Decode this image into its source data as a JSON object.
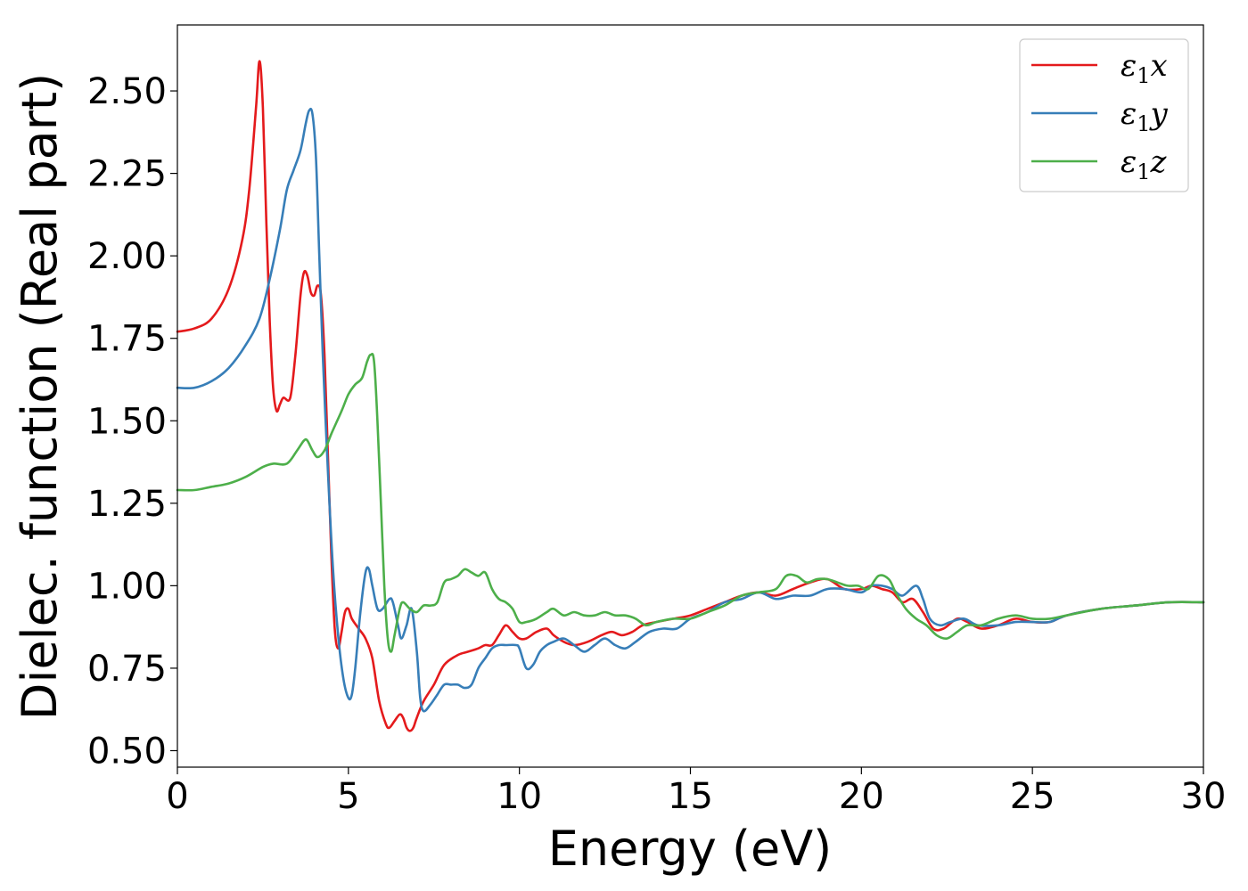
{
  "chart_data": {
    "type": "line",
    "title": "",
    "xlabel": "Energy (eV)",
    "ylabel": "Dielec. function (Real part)",
    "xlim": [
      0,
      30
    ],
    "ylim": [
      0.45,
      2.7
    ],
    "xticks": [
      0,
      5,
      10,
      15,
      20,
      25,
      30
    ],
    "yticks": [
      0.5,
      0.75,
      1.0,
      1.25,
      1.5,
      1.75,
      2.0,
      2.25,
      2.5
    ],
    "ytick_labels": [
      "0.50",
      "0.75",
      "1.00",
      "1.25",
      "1.50",
      "1.75",
      "2.00",
      "2.25",
      "2.50"
    ],
    "grid": false,
    "legend_position": "top-right",
    "series": [
      {
        "name": "ε1x",
        "label_main": "ε",
        "label_sub": "1",
        "label_suffix": "x",
        "color": "#e41a1c",
        "points": [
          [
            0,
            1.77
          ],
          [
            0.5,
            1.78
          ],
          [
            1.0,
            1.81
          ],
          [
            1.5,
            1.9
          ],
          [
            1.9,
            2.05
          ],
          [
            2.1,
            2.2
          ],
          [
            2.3,
            2.45
          ],
          [
            2.4,
            2.59
          ],
          [
            2.5,
            2.45
          ],
          [
            2.6,
            2.1
          ],
          [
            2.7,
            1.8
          ],
          [
            2.8,
            1.6
          ],
          [
            2.9,
            1.53
          ],
          [
            3.0,
            1.55
          ],
          [
            3.1,
            1.57
          ],
          [
            3.3,
            1.57
          ],
          [
            3.45,
            1.7
          ],
          [
            3.6,
            1.88
          ],
          [
            3.7,
            1.95
          ],
          [
            3.8,
            1.94
          ],
          [
            3.9,
            1.89
          ],
          [
            4.0,
            1.88
          ],
          [
            4.1,
            1.91
          ],
          [
            4.2,
            1.88
          ],
          [
            4.3,
            1.7
          ],
          [
            4.4,
            1.4
          ],
          [
            4.5,
            1.1
          ],
          [
            4.6,
            0.87
          ],
          [
            4.7,
            0.81
          ],
          [
            4.8,
            0.86
          ],
          [
            4.9,
            0.92
          ],
          [
            5.0,
            0.93
          ],
          [
            5.1,
            0.9
          ],
          [
            5.3,
            0.87
          ],
          [
            5.5,
            0.84
          ],
          [
            5.7,
            0.78
          ],
          [
            5.9,
            0.65
          ],
          [
            6.1,
            0.58
          ],
          [
            6.2,
            0.57
          ],
          [
            6.35,
            0.59
          ],
          [
            6.5,
            0.61
          ],
          [
            6.6,
            0.6
          ],
          [
            6.7,
            0.57
          ],
          [
            6.8,
            0.56
          ],
          [
            6.9,
            0.57
          ],
          [
            7.0,
            0.6
          ],
          [
            7.2,
            0.65
          ],
          [
            7.5,
            0.7
          ],
          [
            7.8,
            0.76
          ],
          [
            8.2,
            0.79
          ],
          [
            8.5,
            0.8
          ],
          [
            8.8,
            0.81
          ],
          [
            9.0,
            0.82
          ],
          [
            9.2,
            0.82
          ],
          [
            9.4,
            0.85
          ],
          [
            9.6,
            0.88
          ],
          [
            9.8,
            0.86
          ],
          [
            10.0,
            0.84
          ],
          [
            10.2,
            0.84
          ],
          [
            10.5,
            0.86
          ],
          [
            10.8,
            0.87
          ],
          [
            11.0,
            0.85
          ],
          [
            11.3,
            0.83
          ],
          [
            11.6,
            0.82
          ],
          [
            12.0,
            0.83
          ],
          [
            12.4,
            0.85
          ],
          [
            12.7,
            0.86
          ],
          [
            13.0,
            0.85
          ],
          [
            13.3,
            0.86
          ],
          [
            13.6,
            0.88
          ],
          [
            14.0,
            0.89
          ],
          [
            14.5,
            0.9
          ],
          [
            15.0,
            0.91
          ],
          [
            15.5,
            0.93
          ],
          [
            16.0,
            0.95
          ],
          [
            16.5,
            0.97
          ],
          [
            17.0,
            0.98
          ],
          [
            17.5,
            0.97
          ],
          [
            18.0,
            0.99
          ],
          [
            18.5,
            1.01
          ],
          [
            19.0,
            1.02
          ],
          [
            19.5,
            0.99
          ],
          [
            20.0,
            0.99
          ],
          [
            20.3,
            1.0
          ],
          [
            20.6,
            0.99
          ],
          [
            20.9,
            0.98
          ],
          [
            21.2,
            0.95
          ],
          [
            21.5,
            0.96
          ],
          [
            21.8,
            0.92
          ],
          [
            22.1,
            0.87
          ],
          [
            22.4,
            0.87
          ],
          [
            22.8,
            0.9
          ],
          [
            23.1,
            0.89
          ],
          [
            23.5,
            0.87
          ],
          [
            24.0,
            0.88
          ],
          [
            24.5,
            0.9
          ],
          [
            25.0,
            0.89
          ],
          [
            25.5,
            0.89
          ],
          [
            26.0,
            0.91
          ],
          [
            27.0,
            0.93
          ],
          [
            28.0,
            0.94
          ],
          [
            29.0,
            0.95
          ],
          [
            30.0,
            0.95
          ]
        ]
      },
      {
        "name": "ε1y",
        "label_main": "ε",
        "label_sub": "1",
        "label_suffix": "y",
        "color": "#377eb8",
        "points": [
          [
            0,
            1.6
          ],
          [
            0.5,
            1.6
          ],
          [
            1.0,
            1.62
          ],
          [
            1.5,
            1.66
          ],
          [
            2.0,
            1.73
          ],
          [
            2.4,
            1.81
          ],
          [
            2.7,
            1.93
          ],
          [
            3.0,
            2.08
          ],
          [
            3.2,
            2.2
          ],
          [
            3.4,
            2.26
          ],
          [
            3.6,
            2.32
          ],
          [
            3.75,
            2.4
          ],
          [
            3.85,
            2.44
          ],
          [
            3.95,
            2.43
          ],
          [
            4.05,
            2.3
          ],
          [
            4.15,
            2.0
          ],
          [
            4.25,
            1.7
          ],
          [
            4.4,
            1.35
          ],
          [
            4.55,
            1.05
          ],
          [
            4.7,
            0.85
          ],
          [
            4.85,
            0.72
          ],
          [
            5.0,
            0.66
          ],
          [
            5.1,
            0.67
          ],
          [
            5.2,
            0.75
          ],
          [
            5.35,
            0.92
          ],
          [
            5.5,
            1.04
          ],
          [
            5.6,
            1.05
          ],
          [
            5.7,
            1.0
          ],
          [
            5.85,
            0.93
          ],
          [
            6.0,
            0.93
          ],
          [
            6.2,
            0.96
          ],
          [
            6.3,
            0.95
          ],
          [
            6.45,
            0.88
          ],
          [
            6.55,
            0.84
          ],
          [
            6.7,
            0.88
          ],
          [
            6.85,
            0.93
          ],
          [
            7.0,
            0.8
          ],
          [
            7.1,
            0.66
          ],
          [
            7.2,
            0.62
          ],
          [
            7.4,
            0.64
          ],
          [
            7.6,
            0.67
          ],
          [
            7.8,
            0.7
          ],
          [
            8.0,
            0.7
          ],
          [
            8.2,
            0.7
          ],
          [
            8.4,
            0.69
          ],
          [
            8.6,
            0.7
          ],
          [
            8.8,
            0.75
          ],
          [
            9.0,
            0.78
          ],
          [
            9.2,
            0.81
          ],
          [
            9.4,
            0.82
          ],
          [
            9.6,
            0.82
          ],
          [
            9.9,
            0.82
          ],
          [
            10.0,
            0.81
          ],
          [
            10.2,
            0.75
          ],
          [
            10.4,
            0.76
          ],
          [
            10.6,
            0.8
          ],
          [
            10.8,
            0.82
          ],
          [
            11.0,
            0.83
          ],
          [
            11.3,
            0.84
          ],
          [
            11.6,
            0.82
          ],
          [
            11.9,
            0.8
          ],
          [
            12.2,
            0.82
          ],
          [
            12.5,
            0.84
          ],
          [
            12.8,
            0.82
          ],
          [
            13.1,
            0.81
          ],
          [
            13.4,
            0.83
          ],
          [
            13.8,
            0.86
          ],
          [
            14.2,
            0.87
          ],
          [
            14.6,
            0.87
          ],
          [
            15.0,
            0.9
          ],
          [
            15.5,
            0.92
          ],
          [
            16.0,
            0.95
          ],
          [
            16.5,
            0.96
          ],
          [
            17.0,
            0.98
          ],
          [
            17.5,
            0.96
          ],
          [
            18.0,
            0.97
          ],
          [
            18.5,
            0.97
          ],
          [
            19.0,
            0.99
          ],
          [
            19.5,
            0.99
          ],
          [
            20.0,
            0.98
          ],
          [
            20.3,
            1.0
          ],
          [
            20.6,
            1.0
          ],
          [
            20.9,
            0.99
          ],
          [
            21.2,
            0.97
          ],
          [
            21.6,
            1.0
          ],
          [
            21.8,
            0.96
          ],
          [
            22.0,
            0.9
          ],
          [
            22.3,
            0.88
          ],
          [
            22.6,
            0.89
          ],
          [
            23.0,
            0.9
          ],
          [
            23.4,
            0.88
          ],
          [
            24.0,
            0.88
          ],
          [
            24.5,
            0.89
          ],
          [
            25.0,
            0.89
          ],
          [
            25.5,
            0.89
          ],
          [
            26.0,
            0.91
          ],
          [
            27.0,
            0.93
          ],
          [
            28.0,
            0.94
          ],
          [
            29.0,
            0.95
          ],
          [
            30.0,
            0.95
          ]
        ]
      },
      {
        "name": "ε1z",
        "label_main": "ε",
        "label_sub": "1",
        "label_suffix": "z",
        "color": "#4daf4a",
        "points": [
          [
            0,
            1.29
          ],
          [
            0.5,
            1.29
          ],
          [
            1.0,
            1.3
          ],
          [
            1.5,
            1.31
          ],
          [
            2.0,
            1.33
          ],
          [
            2.5,
            1.36
          ],
          [
            2.8,
            1.37
          ],
          [
            3.2,
            1.37
          ],
          [
            3.5,
            1.41
          ],
          [
            3.7,
            1.44
          ],
          [
            3.8,
            1.44
          ],
          [
            3.95,
            1.41
          ],
          [
            4.1,
            1.39
          ],
          [
            4.3,
            1.41
          ],
          [
            4.5,
            1.46
          ],
          [
            4.8,
            1.53
          ],
          [
            5.0,
            1.58
          ],
          [
            5.2,
            1.61
          ],
          [
            5.4,
            1.63
          ],
          [
            5.55,
            1.68
          ],
          [
            5.65,
            1.7
          ],
          [
            5.75,
            1.68
          ],
          [
            5.85,
            1.5
          ],
          [
            5.95,
            1.25
          ],
          [
            6.05,
            1.0
          ],
          [
            6.15,
            0.84
          ],
          [
            6.25,
            0.8
          ],
          [
            6.35,
            0.85
          ],
          [
            6.5,
            0.93
          ],
          [
            6.6,
            0.95
          ],
          [
            6.8,
            0.93
          ],
          [
            7.0,
            0.92
          ],
          [
            7.2,
            0.94
          ],
          [
            7.4,
            0.94
          ],
          [
            7.6,
            0.95
          ],
          [
            7.8,
            1.01
          ],
          [
            8.0,
            1.02
          ],
          [
            8.2,
            1.03
          ],
          [
            8.4,
            1.05
          ],
          [
            8.6,
            1.04
          ],
          [
            8.8,
            1.03
          ],
          [
            9.0,
            1.04
          ],
          [
            9.2,
            0.99
          ],
          [
            9.4,
            0.96
          ],
          [
            9.6,
            0.95
          ],
          [
            9.8,
            0.93
          ],
          [
            10.0,
            0.89
          ],
          [
            10.2,
            0.89
          ],
          [
            10.5,
            0.9
          ],
          [
            10.8,
            0.92
          ],
          [
            11.0,
            0.93
          ],
          [
            11.3,
            0.91
          ],
          [
            11.6,
            0.92
          ],
          [
            11.9,
            0.91
          ],
          [
            12.2,
            0.91
          ],
          [
            12.5,
            0.92
          ],
          [
            12.8,
            0.91
          ],
          [
            13.1,
            0.91
          ],
          [
            13.4,
            0.9
          ],
          [
            13.7,
            0.88
          ],
          [
            14.0,
            0.89
          ],
          [
            14.5,
            0.9
          ],
          [
            15.0,
            0.9
          ],
          [
            15.5,
            0.92
          ],
          [
            16.0,
            0.94
          ],
          [
            16.5,
            0.97
          ],
          [
            17.0,
            0.98
          ],
          [
            17.5,
            0.99
          ],
          [
            17.8,
            1.03
          ],
          [
            18.1,
            1.03
          ],
          [
            18.4,
            1.01
          ],
          [
            18.7,
            1.02
          ],
          [
            19.0,
            1.02
          ],
          [
            19.3,
            1.01
          ],
          [
            19.6,
            1.0
          ],
          [
            19.9,
            1.0
          ],
          [
            20.2,
            0.99
          ],
          [
            20.5,
            1.03
          ],
          [
            20.8,
            1.02
          ],
          [
            21.0,
            0.98
          ],
          [
            21.3,
            0.93
          ],
          [
            21.6,
            0.9
          ],
          [
            21.9,
            0.88
          ],
          [
            22.2,
            0.85
          ],
          [
            22.5,
            0.84
          ],
          [
            22.8,
            0.86
          ],
          [
            23.1,
            0.88
          ],
          [
            23.5,
            0.88
          ],
          [
            24.0,
            0.9
          ],
          [
            24.5,
            0.91
          ],
          [
            25.0,
            0.9
          ],
          [
            25.5,
            0.9
          ],
          [
            26.0,
            0.91
          ],
          [
            27.0,
            0.93
          ],
          [
            28.0,
            0.94
          ],
          [
            29.0,
            0.95
          ],
          [
            30.0,
            0.95
          ]
        ]
      }
    ]
  }
}
